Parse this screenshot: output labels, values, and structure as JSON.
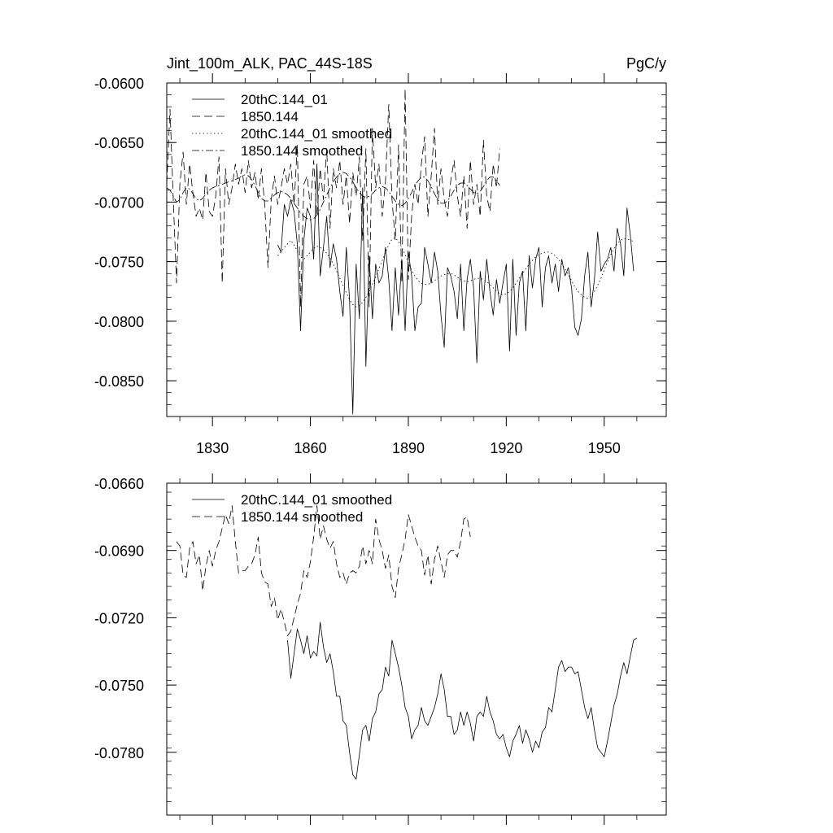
{
  "chart_data": [
    {
      "type": "line",
      "title": "Jint_100m_ALK, PAC_44S-18S",
      "units": "PgC/y",
      "xlim": [
        1816,
        1969
      ],
      "ylim": [
        -0.088,
        -0.06
      ],
      "x_ticks": [
        1830,
        1860,
        1890,
        1920,
        1950
      ],
      "x_tick_labels": [
        "1830",
        "1860",
        "1890",
        "1920",
        "1950"
      ],
      "y_ticks": [
        -0.06,
        -0.065,
        -0.07,
        -0.075,
        -0.08,
        -0.085
      ],
      "y_tick_labels": [
        "-0.0600",
        "-0.0650",
        "-0.0700",
        "-0.0750",
        "-0.0800",
        "-0.0850"
      ],
      "legend": [
        "20thC.144_01",
        "1850.144",
        "20thC.144_01 smoothed",
        "1850.144 smoothed"
      ],
      "series": [
        {
          "name": "20thC.144_01",
          "style": "solid",
          "x_start": 1850,
          "values": [
            -0.0736,
            -0.0742,
            -0.0702,
            -0.0712,
            -0.0698,
            -0.0708,
            -0.0735,
            -0.0808,
            -0.0732,
            -0.0705,
            -0.0712,
            -0.0748,
            -0.0668,
            -0.0762,
            -0.0738,
            -0.0712,
            -0.0755,
            -0.0735,
            -0.0748,
            -0.0775,
            -0.0796,
            -0.0738,
            -0.0782,
            -0.0878,
            -0.0752,
            -0.0798,
            -0.0688,
            -0.0838,
            -0.0745,
            -0.0798,
            -0.0752,
            -0.0768,
            -0.0762,
            -0.0738,
            -0.0765,
            -0.0808,
            -0.0755,
            -0.0795,
            -0.0748,
            -0.0808,
            -0.0742,
            -0.0762,
            -0.0808,
            -0.0788,
            -0.0785,
            -0.0738,
            -0.0752,
            -0.0768,
            -0.0742,
            -0.0758,
            -0.0795,
            -0.0822,
            -0.0755,
            -0.0762,
            -0.0775,
            -0.0798,
            -0.0752,
            -0.0808,
            -0.0765,
            -0.0748,
            -0.0772,
            -0.0835,
            -0.0758,
            -0.0782,
            -0.0748,
            -0.0775,
            -0.0795,
            -0.0765,
            -0.0785,
            -0.0768,
            -0.0752,
            -0.0825,
            -0.0748,
            -0.0812,
            -0.0768,
            -0.0758,
            -0.0808,
            -0.0745,
            -0.0772,
            -0.0748,
            -0.0738,
            -0.0788,
            -0.0755,
            -0.0745,
            -0.0768,
            -0.0752,
            -0.0775,
            -0.0748,
            -0.0762,
            -0.0755,
            -0.0772,
            -0.0805,
            -0.0812,
            -0.0798,
            -0.0762,
            -0.0742,
            -0.0788,
            -0.0765,
            -0.0725,
            -0.0758,
            -0.0752,
            -0.0748,
            -0.0738,
            -0.0758,
            -0.0722,
            -0.0735,
            -0.0762,
            -0.0705,
            -0.0728,
            -0.0758
          ],
          "stroke_width": 0.8
        },
        {
          "name": "1850.144",
          "style": "dashed",
          "x_start": 1816,
          "values": [
            -0.0685,
            -0.0622,
            -0.0698,
            -0.0768,
            -0.0685,
            -0.0658,
            -0.0702,
            -0.0668,
            -0.0692,
            -0.0712,
            -0.0705,
            -0.0715,
            -0.0675,
            -0.0708,
            -0.0712,
            -0.0695,
            -0.0662,
            -0.0768,
            -0.0672,
            -0.0702,
            -0.0688,
            -0.0668,
            -0.0685,
            -0.0672,
            -0.0692,
            -0.0665,
            -0.0688,
            -0.0675,
            -0.0698,
            -0.0672,
            -0.0702,
            -0.0755,
            -0.0698,
            -0.0678,
            -0.0702,
            -0.0688,
            -0.0672,
            -0.0685,
            -0.0668,
            -0.0702,
            -0.0652,
            -0.0788,
            -0.0685,
            -0.0678,
            -0.0705,
            -0.0665,
            -0.0712,
            -0.0672,
            -0.0698,
            -0.0655,
            -0.0722,
            -0.0672,
            -0.0688,
            -0.0665,
            -0.0702,
            -0.0678,
            -0.0718,
            -0.0675,
            -0.0695,
            -0.0662,
            -0.0732,
            -0.0655,
            -0.0788,
            -0.0638,
            -0.0688,
            -0.0668,
            -0.0712,
            -0.0682,
            -0.0618,
            -0.0698,
            -0.0732,
            -0.0652,
            -0.0768,
            -0.0605,
            -0.0765,
            -0.0712,
            -0.0685,
            -0.0702,
            -0.0668,
            -0.0645,
            -0.0712,
            -0.0678,
            -0.0638,
            -0.0702,
            -0.0672,
            -0.0698,
            -0.0712,
            -0.0682,
            -0.0665,
            -0.0695,
            -0.0712,
            -0.0678,
            -0.0722,
            -0.0665,
            -0.0702,
            -0.0685,
            -0.0712,
            -0.0648,
            -0.0695,
            -0.0708,
            -0.0668,
            -0.0688,
            -0.0655
          ],
          "stroke_width": 0.8
        },
        {
          "name": "20thC.144_01 smoothed",
          "style": "dotted",
          "x_start": 1850,
          "values": [
            -0.0745,
            -0.0742,
            -0.0738,
            -0.0735,
            -0.0732,
            -0.0736,
            -0.0741,
            -0.0746,
            -0.0748,
            -0.0745,
            -0.0742,
            -0.0739,
            -0.0737,
            -0.0738,
            -0.074,
            -0.0743,
            -0.0747,
            -0.0752,
            -0.0758,
            -0.0764,
            -0.077,
            -0.0776,
            -0.0782,
            -0.0786,
            -0.0788,
            -0.0787,
            -0.0784,
            -0.078,
            -0.0775,
            -0.0769,
            -0.0763,
            -0.0756,
            -0.0749,
            -0.0742,
            -0.0736,
            -0.0731,
            -0.073,
            -0.0733,
            -0.0738,
            -0.0744,
            -0.0751,
            -0.0757,
            -0.0762,
            -0.0766,
            -0.0768,
            -0.0769,
            -0.0769,
            -0.0768,
            -0.0766,
            -0.0764,
            -0.0762,
            -0.0761,
            -0.076,
            -0.076,
            -0.0761,
            -0.0763,
            -0.0765,
            -0.0766,
            -0.0767,
            -0.0766,
            -0.0765,
            -0.0764,
            -0.0764,
            -0.0765,
            -0.0767,
            -0.0769,
            -0.0772,
            -0.0775,
            -0.0777,
            -0.0778,
            -0.0777,
            -0.0775,
            -0.0772,
            -0.0768,
            -0.0764,
            -0.076,
            -0.0756,
            -0.0752,
            -0.0749,
            -0.0746,
            -0.0744,
            -0.0743,
            -0.0742,
            -0.0742,
            -0.0743,
            -0.0745,
            -0.0748,
            -0.0752,
            -0.0756,
            -0.0761,
            -0.0766,
            -0.0771,
            -0.0775,
            -0.0778,
            -0.078,
            -0.0781,
            -0.0779,
            -0.0775,
            -0.077,
            -0.0764,
            -0.0757,
            -0.075,
            -0.0744,
            -0.0739,
            -0.0735,
            -0.0732,
            -0.0731,
            -0.0731,
            -0.0732,
            -0.0733
          ],
          "stroke_width": 0.8
        },
        {
          "name": "1850.144 smoothed",
          "style": "dashdot",
          "x_start": 1816,
          "values": [
            -0.0688,
            -0.069,
            -0.0695,
            -0.07,
            -0.0698,
            -0.0692,
            -0.0688,
            -0.0689,
            -0.0693,
            -0.0697,
            -0.0699,
            -0.0697,
            -0.0693,
            -0.069,
            -0.0688,
            -0.0687,
            -0.0686,
            -0.0685,
            -0.0684,
            -0.0683,
            -0.0682,
            -0.0681,
            -0.068,
            -0.0678,
            -0.0677,
            -0.0678,
            -0.0681,
            -0.0686,
            -0.0692,
            -0.0697,
            -0.0699,
            -0.0699,
            -0.0697,
            -0.0694,
            -0.0692,
            -0.0691,
            -0.0692,
            -0.0694,
            -0.0697,
            -0.0701,
            -0.0705,
            -0.0709,
            -0.0712,
            -0.0714,
            -0.0715,
            -0.0714,
            -0.0711,
            -0.0706,
            -0.07,
            -0.0694,
            -0.0688,
            -0.0683,
            -0.0679,
            -0.0676,
            -0.0675,
            -0.0676,
            -0.0679,
            -0.0683,
            -0.0688,
            -0.0692,
            -0.0695,
            -0.0696,
            -0.0695,
            -0.0693,
            -0.069,
            -0.0688,
            -0.0687,
            -0.0688,
            -0.0691,
            -0.0695,
            -0.0699,
            -0.0702,
            -0.0703,
            -0.0701,
            -0.0697,
            -0.0692,
            -0.0686,
            -0.0682,
            -0.0679,
            -0.0679,
            -0.0682,
            -0.0687,
            -0.0693,
            -0.0698,
            -0.0701,
            -0.0701,
            -0.0699,
            -0.0695,
            -0.069,
            -0.0686,
            -0.0684,
            -0.0684,
            -0.0686,
            -0.0689,
            -0.0692,
            -0.0693,
            -0.0691,
            -0.0687,
            -0.0682,
            -0.0679,
            -0.0679,
            -0.0682,
            -0.0686
          ],
          "stroke_width": 0.8
        }
      ]
    },
    {
      "type": "line",
      "title": "",
      "xlim": [
        1816,
        1969
      ],
      "ylim": [
        -0.0808,
        -0.066
      ],
      "x_ticks": [
        1830,
        1860,
        1890,
        1920,
        1950
      ],
      "x_tick_labels": [],
      "y_ticks": [
        -0.066,
        -0.069,
        -0.072,
        -0.075,
        -0.078
      ],
      "y_tick_labels": [
        "-0.0660",
        "-0.0690",
        "-0.0720",
        "-0.0750",
        "-0.0780"
      ],
      "legend": [
        "20thC.144_01 smoothed",
        "1850.144 smoothed"
      ],
      "series": [
        {
          "name": "20thC.144_01 smoothed",
          "style": "solid",
          "x_start": 1853,
          "values": [
            -0.073,
            -0.0747,
            -0.0736,
            -0.0725,
            -0.073,
            -0.0736,
            -0.0728,
            -0.0738,
            -0.0735,
            -0.0737,
            -0.0722,
            -0.0733,
            -0.074,
            -0.0736,
            -0.0744,
            -0.0755,
            -0.0755,
            -0.0766,
            -0.0768,
            -0.078,
            -0.079,
            -0.0792,
            -0.0781,
            -0.077,
            -0.0768,
            -0.0775,
            -0.0765,
            -0.0762,
            -0.0754,
            -0.0752,
            -0.0742,
            -0.0746,
            -0.073,
            -0.0736,
            -0.0742,
            -0.075,
            -0.076,
            -0.0764,
            -0.0774,
            -0.077,
            -0.0768,
            -0.076,
            -0.0766,
            -0.0768,
            -0.0764,
            -0.076,
            -0.0754,
            -0.0745,
            -0.0752,
            -0.0764,
            -0.0764,
            -0.0772,
            -0.077,
            -0.0762,
            -0.0768,
            -0.0762,
            -0.0767,
            -0.0775,
            -0.0764,
            -0.0762,
            -0.0764,
            -0.0755,
            -0.0762,
            -0.0766,
            -0.0772,
            -0.0774,
            -0.0772,
            -0.0778,
            -0.0782,
            -0.0775,
            -0.0772,
            -0.0768,
            -0.0776,
            -0.077,
            -0.0774,
            -0.078,
            -0.0775,
            -0.0778,
            -0.0771,
            -0.0769,
            -0.076,
            -0.0762,
            -0.0752,
            -0.0742,
            -0.0739,
            -0.0744,
            -0.0742,
            -0.0742,
            -0.0745,
            -0.0744,
            -0.0752,
            -0.076,
            -0.0765,
            -0.076,
            -0.077,
            -0.0778,
            -0.078,
            -0.0782,
            -0.0775,
            -0.0767,
            -0.0759,
            -0.0754,
            -0.0746,
            -0.074,
            -0.0745,
            -0.0737,
            -0.073,
            -0.0729
          ],
          "stroke_width": 0.8
        },
        {
          "name": "1850.144 smoothed",
          "style": "dashed",
          "x_start": 1819,
          "values": [
            -0.0686,
            -0.0688,
            -0.0701,
            -0.0702,
            -0.0689,
            -0.0686,
            -0.0696,
            -0.0692,
            -0.0708,
            -0.0697,
            -0.069,
            -0.0697,
            -0.069,
            -0.0686,
            -0.068,
            -0.0674,
            -0.0678,
            -0.067,
            -0.0686,
            -0.07,
            -0.0699,
            -0.0699,
            -0.0697,
            -0.0696,
            -0.0692,
            -0.0684,
            -0.07,
            -0.0704,
            -0.0705,
            -0.0715,
            -0.0711,
            -0.0721,
            -0.0716,
            -0.0722,
            -0.0728,
            -0.0726,
            -0.072,
            -0.0714,
            -0.0709,
            -0.0699,
            -0.0702,
            -0.0695,
            -0.0684,
            -0.067,
            -0.0685,
            -0.0679,
            -0.0685,
            -0.0689,
            -0.0686,
            -0.0696,
            -0.0702,
            -0.07,
            -0.0705,
            -0.07,
            -0.0699,
            -0.07,
            -0.0697,
            -0.0688,
            -0.0696,
            -0.069,
            -0.0696,
            -0.0676,
            -0.0685,
            -0.069,
            -0.0698,
            -0.0692,
            -0.0706,
            -0.0711,
            -0.0698,
            -0.0692,
            -0.0685,
            -0.0674,
            -0.0679,
            -0.0684,
            -0.0688,
            -0.069,
            -0.0701,
            -0.0692,
            -0.0705,
            -0.0694,
            -0.0688,
            -0.0695,
            -0.0702,
            -0.0692,
            -0.069,
            -0.069,
            -0.0693,
            -0.0686,
            -0.0676,
            -0.0675,
            -0.0684
          ],
          "stroke_width": 0.8
        }
      ]
    }
  ]
}
